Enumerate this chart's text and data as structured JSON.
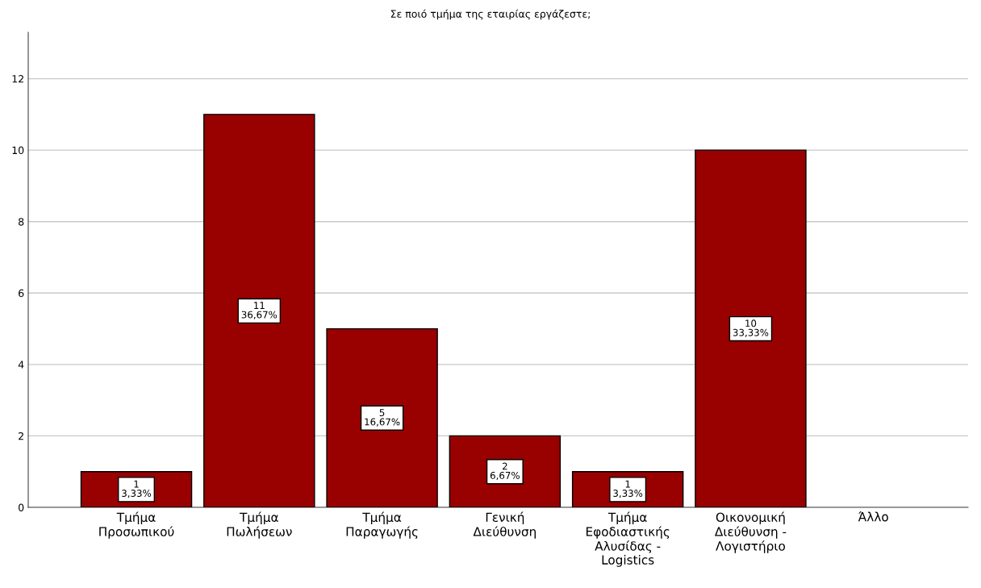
{
  "chart_data": {
    "type": "bar",
    "title": "Σε ποιό τμήμα της εταιρίας εργάζεστε;",
    "categories": [
      "Τμήμα\nΠροσωπικού",
      "Τμήμα\nΠωλήσεων",
      "Τμήμα\nΠαραγωγής",
      "Γενική\nΔιεύθυνση",
      "Τμήμα\nΕφοδιαστικής\nΑλυσίδας -\nLogistics",
      "Οικονομική\nΔιεύθυνση -\nΛογιστήριο",
      "Άλλο"
    ],
    "values": [
      1,
      11,
      5,
      2,
      1,
      10,
      0
    ],
    "value_labels": [
      "1\n3,33%",
      "11\n36,67%",
      "5\n16,67%",
      "2\n6,67%",
      "1\n3,33%",
      "10\n33,33%",
      null
    ],
    "color": "#990000",
    "ylim": [
      0,
      13.3
    ],
    "yticks": [
      0,
      2,
      4,
      6,
      8,
      10,
      12
    ],
    "grid": "y"
  }
}
